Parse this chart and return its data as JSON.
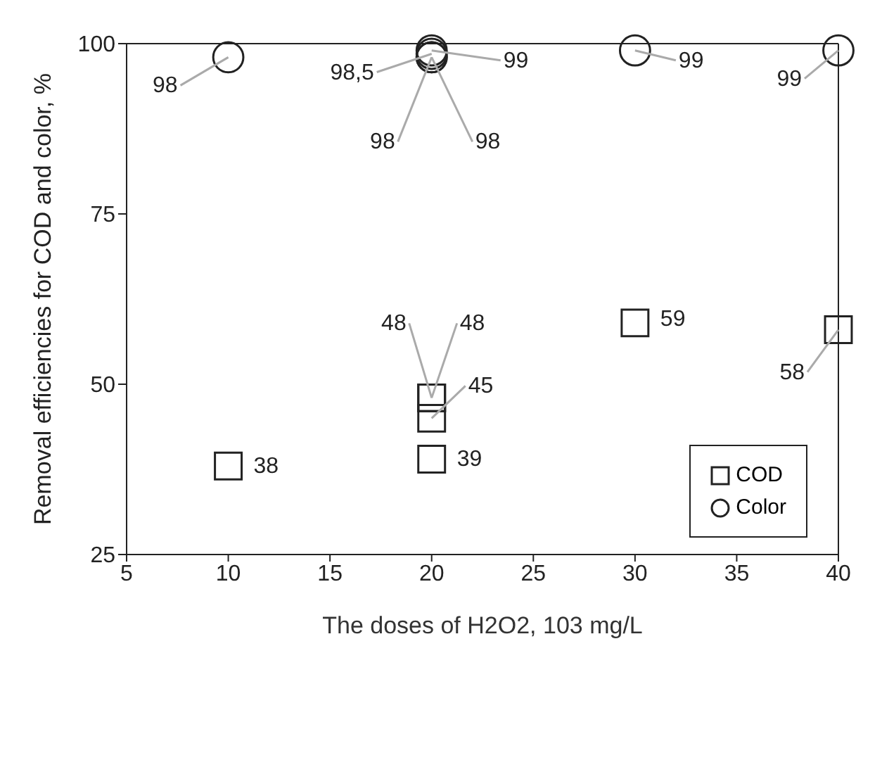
{
  "chart_data": {
    "type": "scatter",
    "xlabel": "The doses of H2O2, 103 mg/L",
    "ylabel": "Removal efficiencies for COD and color, %",
    "xlim": [
      5,
      40
    ],
    "xticks": [
      5,
      10,
      15,
      20,
      25,
      30,
      35,
      40
    ],
    "ylim": [
      25,
      100
    ],
    "yticks": [
      25,
      50,
      75,
      100
    ],
    "grid": false,
    "legend": "bottom right",
    "series": [
      {
        "name": "COD",
        "color": "#222222",
        "marker": "square",
        "x": [
          10,
          20,
          20,
          20,
          20,
          30,
          40
        ],
        "values": [
          38,
          48,
          48,
          45,
          39,
          59,
          58
        ],
        "value_labels": [
          "38",
          "48",
          "48",
          "45",
          "39",
          "59",
          "58"
        ]
      },
      {
        "name": "Color",
        "color": "#222222",
        "marker": "circle",
        "x": [
          10,
          20,
          20,
          20,
          20,
          30,
          40
        ],
        "values": [
          98,
          98.5,
          99,
          98,
          98,
          99,
          99
        ],
        "value_labels": [
          "98",
          "98,5",
          "99",
          "98",
          "98",
          "99",
          "99"
        ]
      }
    ]
  }
}
